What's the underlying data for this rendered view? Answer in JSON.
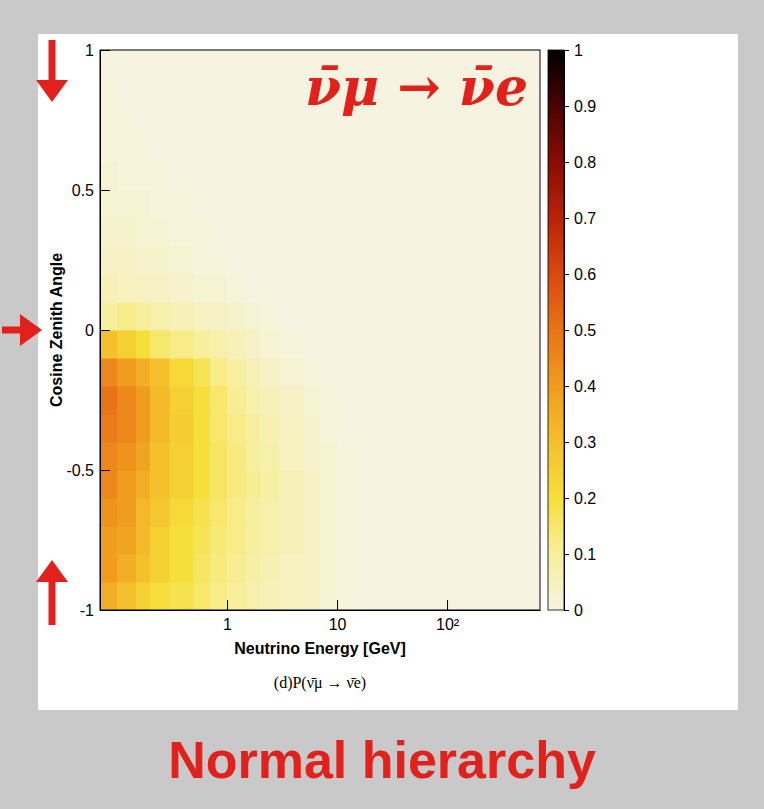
{
  "chart_data": {
    "type": "heatmap",
    "title": "ν̄μ → ν̄e",
    "xlabel": "Neutrino Energy [GeV]",
    "ylabel": "Cosine Zenith Angle",
    "caption": "(d)P(ν̄μ → ν̄e)",
    "annotation": "Normal hierarchy",
    "log": "x",
    "xlim": [
      0.07,
      700
    ],
    "xticks": [
      1,
      10,
      {
        "value": 100,
        "label": "10²"
      }
    ],
    "ylim": [
      -1,
      1
    ],
    "yticks": [
      -1,
      -0.5,
      0,
      0.5,
      1
    ],
    "x_bins": [
      0.07,
      0.1,
      0.15,
      0.2,
      0.3,
      0.5,
      0.7,
      1,
      1.5,
      2,
      3,
      5,
      7,
      10,
      15,
      20,
      30,
      50,
      100,
      200,
      700
    ],
    "y_bins": [
      -1,
      -0.9,
      -0.8,
      -0.7,
      -0.6,
      -0.5,
      -0.4,
      -0.3,
      -0.2,
      -0.1,
      0,
      0.1,
      0.2,
      0.3,
      0.4,
      0.5,
      0.6,
      0.7,
      0.8,
      0.9,
      1
    ],
    "cells": [
      [
        0.35,
        0.3,
        0.25,
        0.2,
        0.18,
        0.15,
        0.12,
        0.1,
        0.08,
        0.06,
        0.05,
        0.04,
        0.02,
        0.01,
        0,
        0,
        0,
        0,
        0,
        0
      ],
      [
        0.4,
        0.35,
        0.3,
        0.25,
        0.2,
        0.16,
        0.13,
        0.11,
        0.09,
        0.07,
        0.05,
        0.04,
        0.02,
        0.01,
        0,
        0,
        0,
        0,
        0,
        0
      ],
      [
        0.4,
        0.38,
        0.32,
        0.25,
        0.2,
        0.17,
        0.14,
        0.12,
        0.1,
        0.08,
        0.06,
        0.04,
        0.02,
        0.01,
        0,
        0,
        0,
        0,
        0,
        0
      ],
      [
        0.42,
        0.4,
        0.32,
        0.28,
        0.22,
        0.18,
        0.15,
        0.12,
        0.1,
        0.08,
        0.06,
        0.04,
        0.02,
        0.01,
        0,
        0,
        0,
        0,
        0,
        0
      ],
      [
        0.45,
        0.4,
        0.35,
        0.3,
        0.25,
        0.2,
        0.16,
        0.13,
        0.11,
        0.09,
        0.06,
        0.04,
        0.02,
        0.01,
        0,
        0,
        0,
        0,
        0,
        0
      ],
      [
        0.45,
        0.42,
        0.38,
        0.3,
        0.25,
        0.2,
        0.16,
        0.13,
        0.1,
        0.08,
        0.05,
        0.03,
        0.02,
        0.01,
        0,
        0,
        0,
        0,
        0,
        0
      ],
      [
        0.48,
        0.45,
        0.4,
        0.32,
        0.26,
        0.2,
        0.15,
        0.12,
        0.1,
        0.07,
        0.05,
        0.03,
        0.01,
        0,
        0,
        0,
        0,
        0,
        0,
        0
      ],
      [
        0.5,
        0.45,
        0.4,
        0.32,
        0.25,
        0.2,
        0.15,
        0.11,
        0.08,
        0.06,
        0.04,
        0.02,
        0.01,
        0,
        0,
        0,
        0,
        0,
        0,
        0
      ],
      [
        0.45,
        0.4,
        0.35,
        0.3,
        0.22,
        0.17,
        0.12,
        0.09,
        0.06,
        0.04,
        0.02,
        0.01,
        0,
        0,
        0,
        0,
        0,
        0,
        0,
        0
      ],
      [
        0.3,
        0.25,
        0.2,
        0.15,
        0.12,
        0.1,
        0.08,
        0.06,
        0.04,
        0.02,
        0.01,
        0,
        0,
        0,
        0,
        0,
        0,
        0,
        0,
        0
      ],
      [
        0.1,
        0.12,
        0.1,
        0.08,
        0.06,
        0.05,
        0.04,
        0.03,
        0.02,
        0.01,
        0,
        0,
        0,
        0,
        0,
        0,
        0,
        0,
        0,
        0
      ],
      [
        0.06,
        0.05,
        0.05,
        0.04,
        0.03,
        0.02,
        0.02,
        0.01,
        0,
        0,
        0,
        0,
        0,
        0,
        0,
        0,
        0,
        0,
        0,
        0
      ],
      [
        0.04,
        0.04,
        0.03,
        0.03,
        0.02,
        0.01,
        0.01,
        0,
        0,
        0,
        0,
        0,
        0,
        0,
        0,
        0,
        0,
        0,
        0,
        0
      ],
      [
        0.03,
        0.03,
        0.02,
        0.02,
        0.01,
        0.01,
        0,
        0,
        0,
        0,
        0,
        0,
        0,
        0,
        0,
        0,
        0,
        0,
        0,
        0
      ],
      [
        0.02,
        0.02,
        0.02,
        0.01,
        0.01,
        0,
        0,
        0,
        0,
        0,
        0,
        0,
        0,
        0,
        0,
        0,
        0,
        0,
        0,
        0
      ],
      [
        0.02,
        0.01,
        0.01,
        0.01,
        0,
        0,
        0,
        0,
        0,
        0,
        0,
        0,
        0,
        0,
        0,
        0,
        0,
        0,
        0,
        0
      ],
      [
        0.01,
        0.01,
        0.01,
        0,
        0,
        0,
        0,
        0,
        0,
        0,
        0,
        0,
        0,
        0,
        0,
        0,
        0,
        0,
        0,
        0
      ],
      [
        0.01,
        0.01,
        0,
        0,
        0,
        0,
        0,
        0,
        0,
        0,
        0,
        0,
        0,
        0,
        0,
        0,
        0,
        0,
        0,
        0
      ],
      [
        0.01,
        0,
        0,
        0,
        0,
        0,
        0,
        0,
        0,
        0,
        0,
        0,
        0,
        0,
        0,
        0,
        0,
        0,
        0,
        0
      ],
      [
        0,
        0,
        0,
        0,
        0,
        0,
        0,
        0,
        0,
        0,
        0,
        0,
        0,
        0,
        0,
        0,
        0,
        0,
        0,
        0
      ]
    ],
    "colorbar_range": [
      0,
      1
    ],
    "colorbar_ticks": [
      0,
      0.1,
      0.2,
      0.3,
      0.4,
      0.5,
      0.6,
      0.7,
      0.8,
      0.9,
      1
    ]
  }
}
